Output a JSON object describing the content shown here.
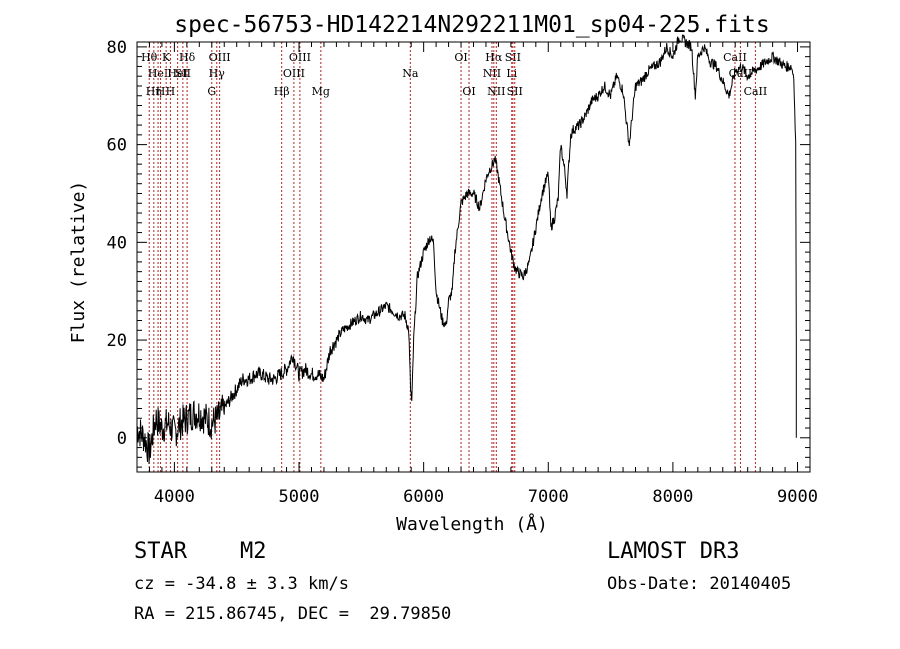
{
  "chart_data": {
    "type": "line",
    "title": "spec-56753-HD142214N292211M01_sp04-225.fits",
    "xlabel": "Wavelength (Å)",
    "ylabel": "Flux (relative)",
    "xlim": [
      3700,
      9100
    ],
    "ylim": [
      -7,
      81
    ],
    "xticks": [
      4000,
      5000,
      6000,
      7000,
      8000,
      9000
    ],
    "yticks": [
      0,
      20,
      40,
      60,
      80
    ],
    "grid": false,
    "line_color": "#000000",
    "marker_color": "#b22222",
    "series": [
      {
        "name": "flux",
        "x": [
          3700,
          3760,
          3800,
          3850,
          3900,
          3950,
          4000,
          4050,
          4100,
          4150,
          4200,
          4250,
          4300,
          4350,
          4400,
          4450,
          4500,
          4550,
          4600,
          4650,
          4700,
          4750,
          4800,
          4850,
          4900,
          4950,
          5000,
          5050,
          5100,
          5150,
          5200,
          5250,
          5300,
          5350,
          5400,
          5450,
          5500,
          5550,
          5600,
          5650,
          5700,
          5750,
          5800,
          5850,
          5880,
          5895,
          5905,
          5920,
          5950,
          6000,
          6050,
          6080,
          6100,
          6150,
          6180,
          6200,
          6230,
          6250,
          6300,
          6350,
          6400,
          6450,
          6500,
          6530,
          6555,
          6570,
          6590,
          6620,
          6650,
          6680,
          6700,
          6730,
          6750,
          6800,
          6850,
          6900,
          6950,
          7000,
          7020,
          7050,
          7080,
          7100,
          7130,
          7150,
          7180,
          7200,
          7250,
          7300,
          7350,
          7400,
          7450,
          7500,
          7550,
          7600,
          7630,
          7650,
          7670,
          7700,
          7750,
          7800,
          7850,
          7900,
          7950,
          8000,
          8050,
          8100,
          8150,
          8180,
          8200,
          8250,
          8300,
          8350,
          8400,
          8450,
          8500,
          8550,
          8600,
          8650,
          8700,
          8750,
          8800,
          8850,
          8900,
          8950,
          8970,
          8985,
          8990
        ],
        "y": [
          2,
          0,
          -3,
          4,
          2,
          3,
          1,
          3,
          4,
          5,
          5,
          4,
          3,
          4,
          6,
          8,
          10,
          12,
          12,
          13,
          13,
          12,
          12,
          13,
          14,
          17,
          13,
          14,
          13,
          13,
          12,
          18,
          20,
          22,
          23,
          24,
          25,
          24,
          25,
          26,
          27,
          26,
          25,
          25,
          22,
          10,
          7,
          20,
          33,
          38,
          41,
          40,
          30,
          24,
          23,
          28,
          30,
          38,
          48,
          50,
          50,
          47,
          53,
          55,
          56,
          57,
          55,
          50,
          45,
          41,
          38,
          35,
          34,
          33,
          36,
          43,
          50,
          54,
          43,
          45,
          49,
          60,
          55,
          50,
          62,
          63,
          64,
          66,
          69,
          70,
          72,
          70,
          74,
          71,
          64,
          60,
          65,
          72,
          73,
          75,
          76,
          77,
          80,
          78,
          82,
          81,
          80,
          70,
          78,
          80,
          77,
          76,
          73,
          70,
          75,
          76,
          74,
          75,
          76,
          77,
          78,
          77,
          76,
          76,
          74,
          60,
          20
        ]
      }
    ],
    "line_markers": [
      {
        "wl": 3798,
        "label": "Hθ",
        "row": 0
      },
      {
        "wl": 3835,
        "label": "Hη",
        "row": 2
      },
      {
        "wl": 3869,
        "label": "HeI",
        "row": 1
      },
      {
        "wl": 3889,
        "label": "H",
        "row": 2
      },
      {
        "wl": 3934,
        "label": "K",
        "row": 0
      },
      {
        "wl": 3968,
        "label": "H",
        "row": 2
      },
      {
        "wl": 4026,
        "label": "HeI",
        "row": 1
      },
      {
        "wl": 4068,
        "label": "SII",
        "row": 1
      },
      {
        "wl": 4102,
        "label": "Hδ",
        "row": 0
      },
      {
        "wl": 4300,
        "label": "G",
        "row": 2
      },
      {
        "wl": 4340,
        "label": "Hγ",
        "row": 1
      },
      {
        "wl": 4363,
        "label": "OIII",
        "row": 0
      },
      {
        "wl": 4861,
        "label": "Hβ",
        "row": 2
      },
      {
        "wl": 4959,
        "label": "OIII",
        "row": 1
      },
      {
        "wl": 5007,
        "label": "OIII",
        "row": 0
      },
      {
        "wl": 5175,
        "label": "Mg",
        "row": 2
      },
      {
        "wl": 5893,
        "label": "Na",
        "row": 1
      },
      {
        "wl": 6300,
        "label": "OI",
        "row": 0
      },
      {
        "wl": 6364,
        "label": "OI",
        "row": 2
      },
      {
        "wl": 6548,
        "label": "NII",
        "row": 1
      },
      {
        "wl": 6563,
        "label": "Hα",
        "row": 0
      },
      {
        "wl": 6583,
        "label": "NII",
        "row": 2
      },
      {
        "wl": 6707,
        "label": "Li",
        "row": 1
      },
      {
        "wl": 6716,
        "label": "SII",
        "row": 0
      },
      {
        "wl": 6731,
        "label": "SII",
        "row": 2
      },
      {
        "wl": 8498,
        "label": "CaII",
        "row": 0
      },
      {
        "wl": 8542,
        "label": "CaII",
        "row": 1
      },
      {
        "wl": 8662,
        "label": "CaII",
        "row": 2
      }
    ]
  },
  "info": {
    "object_class": "STAR",
    "subclass": "M2",
    "survey": "LAMOST DR3",
    "redshift": "cz = -34.8 ± 3.3 km/s",
    "obs_date": "Obs-Date: 20140405",
    "coords": "RA = 215.86745, DEC =  29.79850"
  }
}
